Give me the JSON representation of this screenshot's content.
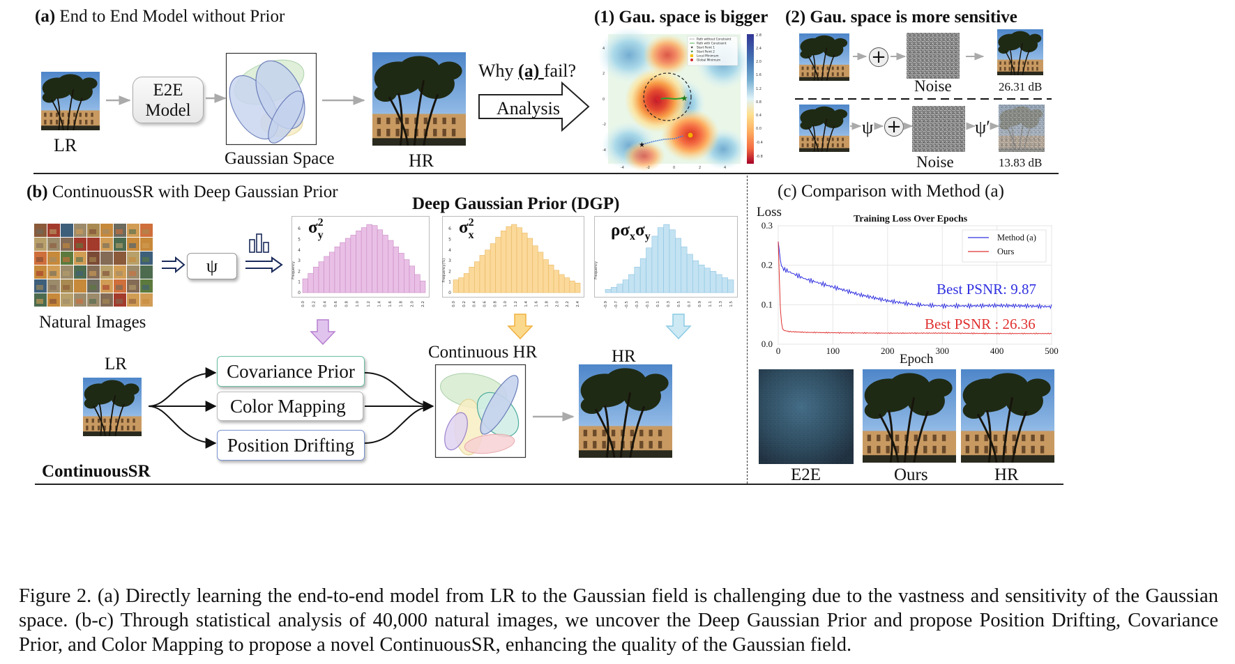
{
  "panel_a": {
    "label": "(a)",
    "title": "End to End Model without Prior",
    "lr_label": "LR",
    "e2e_line1": "E2E",
    "e2e_line2": "Model",
    "gaussian_space_label": "Gaussian Space",
    "hr_label": "HR",
    "why_prefix": "Why ",
    "why_ref": "(a) ",
    "why_suffix": "fail?",
    "analysis_label": "Analysis"
  },
  "panel_1": {
    "title": "(1) Gau. space is bigger",
    "legend": [
      "Path without Constraint",
      "Path with Constraint",
      "Start Point 1",
      "Start Point 2",
      "Local Minimum",
      "Global Minimum"
    ],
    "colorbar_ticks": [
      "2.8",
      "2.4",
      "2.0",
      "1.6",
      "1.2",
      "0.8",
      "0.4",
      "0.0",
      "-0.4",
      "-0.8"
    ],
    "x_ticks": [
      "-4",
      "-2",
      "0",
      "2",
      "4"
    ],
    "y_ticks": [
      "4",
      "2",
      "0",
      "-2",
      "-4"
    ]
  },
  "panel_2": {
    "title": "(2) Gau. space is more sensitive",
    "plus": "+",
    "noise_label_1": "Noise",
    "psnr_1": "26.31 dB",
    "psi": "ψ",
    "psi_prime": "ψ′",
    "noise_label_2": "Noise",
    "psnr_2": "13.83 dB"
  },
  "panel_b": {
    "label": "(b)",
    "title": "ContinuousSR with Deep Gaussian Prior",
    "natural_images_label": "Natural Images",
    "psi": "ψ",
    "dgp_title": "Deep Gaussian Prior (DGP)",
    "lr_label": "LR",
    "covariance_prior": "Covariance Prior",
    "color_mapping": "Color Mapping",
    "position_drifting": "Position Drifting",
    "continuous_hr_label": "Continuous HR",
    "hr_label": "HR",
    "continuoussr_label": "ContinuousSR"
  },
  "histograms": [
    {
      "symbol": "σ",
      "sup": "2",
      "sub": "y",
      "ylabel": "Frequency",
      "color": "#e9bfe6",
      "edge": "#c98cc3",
      "arrow_color": "#d6a6e3",
      "x_ticks": [
        "0.0",
        "0.2",
        "0.4",
        "0.6",
        "0.8",
        "1.0",
        "1.2",
        "1.4",
        "1.6",
        "1.8",
        "2.0",
        "2.2"
      ],
      "y_ticks": [
        "0",
        "1",
        "2",
        "3",
        "4",
        "5",
        "6"
      ],
      "values": [
        1.3,
        1.8,
        2.4,
        2.9,
        3.4,
        3.8,
        4.3,
        4.7,
        5.1,
        5.4,
        5.8,
        6.1,
        6.4,
        6.3,
        5.9,
        5.4,
        4.9,
        4.3,
        3.7,
        3.1,
        2.5,
        1.7,
        1.1
      ]
    },
    {
      "symbol": "σ",
      "sup": "2",
      "sub": "x",
      "ylabel": "Frequency(%)",
      "color": "#fbd99a",
      "edge": "#e8b763",
      "arrow_color": "#f5c468",
      "x_ticks": [
        "0.0",
        "0.2",
        "0.4",
        "0.6",
        "0.8",
        "1.0",
        "1.2",
        "1.4",
        "1.6",
        "1.8",
        "2.0",
        "2.2",
        "2.4"
      ],
      "y_ticks": [
        "0",
        "1",
        "2",
        "3",
        "4",
        "5",
        "6"
      ],
      "values": [
        1.2,
        1.4,
        1.8,
        2.4,
        2.9,
        3.5,
        4.0,
        4.6,
        5.2,
        5.8,
        6.2,
        6.4,
        6.1,
        5.6,
        5.1,
        4.4,
        3.8,
        3.1,
        2.6,
        2.1,
        1.7,
        1.4,
        1.1,
        0.9
      ]
    },
    {
      "symbol": "ρσ",
      "sub": "x",
      "symbol2": "σ",
      "sub2": "y",
      "ylabel": "Frequency",
      "color": "#c3e2f2",
      "edge": "#8cc4e2",
      "arrow_color": "#a8d8ea",
      "x_ticks": [
        "-0.9",
        "-0.7",
        "-0.5",
        "-0.3",
        "-0.1",
        "0.1",
        "0.3",
        "0.5",
        "0.7",
        "0.9",
        "1.1",
        "1.3",
        "1.5"
      ],
      "y_ticks": [],
      "values": [
        0.3,
        0.5,
        0.8,
        1.2,
        1.7,
        2.4,
        3.2,
        4.2,
        5.3,
        6.1,
        6.4,
        5.9,
        5.1,
        4.3,
        3.6,
        3.0,
        2.6,
        2.3,
        2.0,
        1.7,
        1.4,
        1.2
      ]
    }
  ],
  "panel_c": {
    "title": "(c) Comparison with Method (a)",
    "chart_title": "Training Loss Over Epochs",
    "legend_a": "Method (a)",
    "legend_ours": "Ours",
    "best_a": "Best PSNR: 9.87",
    "best_ours": "Best PSNR : 26.36",
    "ylabel": "Loss",
    "xlabel": "Epoch",
    "x_ticks": [
      "0",
      "100",
      "200",
      "300",
      "400",
      "500"
    ],
    "y_ticks": [
      "0.0",
      "0.1",
      "0.2",
      "0.3"
    ],
    "img_labels": [
      "E2E",
      "Ours",
      "HR"
    ],
    "color_a": "#3030e0",
    "color_ours": "#e03030"
  },
  "chart_data": {
    "type": "line",
    "title": "Training Loss Over Epochs",
    "xlabel": "Epoch",
    "ylabel": "Loss",
    "xlim": [
      0,
      500
    ],
    "ylim": [
      0,
      0.3
    ],
    "series": [
      {
        "name": "Method (a)",
        "x": [
          0,
          5,
          10,
          25,
          50,
          75,
          100,
          150,
          200,
          250,
          300,
          350,
          400,
          450,
          500
        ],
        "y": [
          0.26,
          0.2,
          0.19,
          0.18,
          0.165,
          0.155,
          0.145,
          0.125,
          0.11,
          0.1,
          0.097,
          0.097,
          0.098,
          0.097,
          0.095
        ]
      },
      {
        "name": "Ours",
        "x": [
          0,
          3,
          5,
          8,
          10,
          20,
          50,
          100,
          200,
          300,
          400,
          500
        ],
        "y": [
          0.26,
          0.12,
          0.06,
          0.04,
          0.035,
          0.032,
          0.03,
          0.029,
          0.028,
          0.028,
          0.027,
          0.027
        ]
      }
    ],
    "annotations": [
      "Best PSNR: 9.87",
      "Best PSNR : 26.36"
    ]
  },
  "caption": "Figure 2.  (a) Directly learning the end-to-end model from LR to the Gaussian field is challenging due to the vastness and sensitivity of the Gaussian space. (b-c) Through statistical analysis of 40,000 natural images, we uncover the Deep Gaussian Prior and propose Position Drifting, Covariance Prior, and Color Mapping to propose a novel ContinuousSR, enhancing the quality of the Gaussian field."
}
